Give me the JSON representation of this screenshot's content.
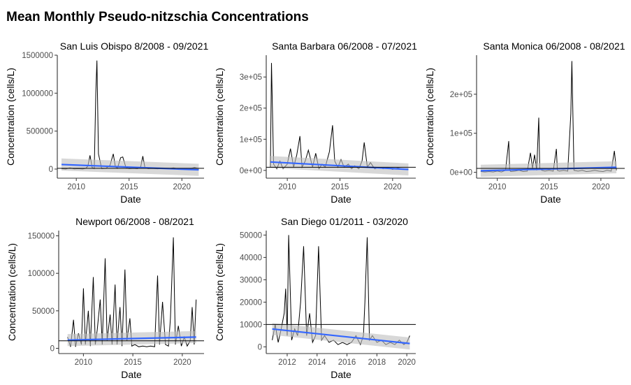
{
  "title": "Mean Monthly Pseudo-nitzschia Concentrations",
  "colors": {
    "line": "#000000",
    "trend": "#3366FF",
    "band": "#BEBEBE",
    "axis": "#333333"
  },
  "chart_data": [
    {
      "type": "line",
      "title": "San Luis Obispo 8/2008 - 09/2021",
      "xlabel": "Date",
      "ylabel": "Concentration (cells/L)",
      "xlim": [
        2008.2,
        2022.1
      ],
      "ylim": [
        -120000,
        1500000
      ],
      "xticks": [
        2010,
        2015,
        2020
      ],
      "xtick_labels": [
        "2010",
        "2015",
        "2020"
      ],
      "yticks": [
        0,
        500000,
        1000000,
        1500000
      ],
      "ytick_labels": [
        "0",
        "500000",
        "1000000",
        "1500000"
      ],
      "threshold": 10000,
      "series": [
        {
          "x": [
            2008.6,
            2009.0,
            2009.4,
            2009.8,
            2010.2,
            2010.6,
            2010.9,
            2011.1,
            2011.3,
            2011.5,
            2011.7,
            2011.85,
            2011.95,
            2012.1,
            2012.4,
            2012.8,
            2013.2,
            2013.5,
            2013.7,
            2013.9,
            2014.2,
            2014.4,
            2014.7,
            2015.0,
            2015.4,
            2015.8,
            2016.1,
            2016.3,
            2016.5,
            2016.8,
            2017.2,
            2017.7,
            2018.2,
            2018.7,
            2019.2,
            2019.7,
            2020.2,
            2020.7,
            2021.2,
            2021.6
          ],
          "y": [
            5000,
            1000,
            15000,
            2000,
            5000,
            1000,
            10000,
            40000,
            180000,
            20000,
            5000,
            1000000,
            1430000,
            200000,
            5000,
            10000,
            50000,
            200000,
            30000,
            10000,
            150000,
            160000,
            20000,
            5000,
            10000,
            5000,
            30000,
            170000,
            20000,
            5000,
            8000,
            3000,
            10000,
            4000,
            15000,
            3000,
            5000,
            2000,
            20000,
            5000
          ]
        }
      ],
      "trend": {
        "x": [
          2008.6,
          2021.6
        ],
        "y": [
          60000,
          -10000
        ]
      }
    },
    {
      "type": "line",
      "title": "Santa Barbara 06/2008 - 07/2021",
      "xlabel": "Date",
      "ylabel": "Concentration (cells/L)",
      "xlim": [
        2008.0,
        2022.2
      ],
      "ylim": [
        -25000,
        370000
      ],
      "xticks": [
        2010,
        2015,
        2020
      ],
      "xtick_labels": [
        "2010",
        "2015",
        "2020"
      ],
      "yticks": [
        0,
        100000,
        200000,
        300000
      ],
      "ytick_labels": [
        "0e+00",
        "1e+05",
        "2e+05",
        "3e+05"
      ],
      "threshold": 10000,
      "series": [
        {
          "x": [
            2008.4,
            2008.5,
            2008.7,
            2009.0,
            2009.3,
            2009.6,
            2010.0,
            2010.3,
            2010.6,
            2010.9,
            2011.2,
            2011.4,
            2011.7,
            2012.0,
            2012.4,
            2012.7,
            2013.0,
            2013.3,
            2013.6,
            2014.0,
            2014.3,
            2014.5,
            2014.8,
            2015.1,
            2015.4,
            2015.8,
            2016.1,
            2016.4,
            2016.8,
            2017.1,
            2017.3,
            2017.6,
            2017.9,
            2018.3,
            2018.7,
            2019.1,
            2019.5,
            2020.0,
            2020.5,
            2021.0,
            2021.5
          ],
          "y": [
            10000,
            345000,
            20000,
            5000,
            30000,
            5000,
            20000,
            70000,
            10000,
            50000,
            110000,
            10000,
            30000,
            65000,
            10000,
            55000,
            5000,
            20000,
            10000,
            60000,
            145000,
            30000,
            10000,
            35000,
            10000,
            20000,
            5000,
            15000,
            5000,
            30000,
            90000,
            10000,
            25000,
            5000,
            10000,
            5000,
            10000,
            3000,
            8000,
            3000,
            5000
          ]
        }
      ],
      "trend": {
        "x": [
          2008.4,
          2021.5
        ],
        "y": [
          27000,
          3000
        ]
      }
    },
    {
      "type": "line",
      "title": "Santa Monica 06/2008 - 08/2021",
      "xlabel": "Date",
      "ylabel": "Concentration (cells/L)",
      "xlim": [
        2008.0,
        2022.3
      ],
      "ylim": [
        -15000,
        300000
      ],
      "xticks": [
        2010,
        2015,
        2020
      ],
      "xtick_labels": [
        "2010",
        "2015",
        "2020"
      ],
      "yticks": [
        0,
        100000,
        200000
      ],
      "ytick_labels": [
        "0e+00",
        "1e+05",
        "2e+05"
      ],
      "threshold": 10000,
      "series": [
        {
          "x": [
            2008.4,
            2008.8,
            2009.2,
            2009.6,
            2010.0,
            2010.4,
            2010.8,
            2011.1,
            2011.2,
            2011.3,
            2011.7,
            2012.1,
            2012.5,
            2012.9,
            2013.2,
            2013.4,
            2013.6,
            2013.8,
            2014.0,
            2014.1,
            2014.3,
            2014.6,
            2015.0,
            2015.4,
            2015.7,
            2015.8,
            2016.0,
            2016.4,
            2016.8,
            2017.1,
            2017.2,
            2017.4,
            2017.8,
            2018.2,
            2018.6,
            2019.0,
            2019.4,
            2019.8,
            2020.2,
            2020.6,
            2021.0,
            2021.3,
            2021.5
          ],
          "y": [
            2000,
            1000,
            2000,
            1000,
            3000,
            1000,
            5000,
            80000,
            5000,
            2000,
            3000,
            5000,
            2000,
            3000,
            50000,
            10000,
            45000,
            5000,
            140000,
            10000,
            5000,
            3000,
            5000,
            3000,
            60000,
            5000,
            3000,
            5000,
            3000,
            150000,
            285000,
            5000,
            3000,
            5000,
            2000,
            3000,
            5000,
            3000,
            2000,
            5000,
            3000,
            55000,
            5000
          ]
        }
      ],
      "trend": {
        "x": [
          2008.4,
          2021.5
        ],
        "y": [
          4000,
          13000
        ]
      }
    },
    {
      "type": "line",
      "title": "Newport 06/2008 - 08/2021",
      "xlabel": "Date",
      "ylabel": "Concentration (cells/L)",
      "xlim": [
        2007.5,
        2022.2
      ],
      "ylim": [
        -7000,
        157000
      ],
      "xticks": [
        2010,
        2015,
        2020
      ],
      "xtick_labels": [
        "2010",
        "2015",
        "2020"
      ],
      "yticks": [
        0,
        50000,
        100000,
        150000
      ],
      "ytick_labels": [
        "0",
        "50000",
        "100000",
        "150000"
      ],
      "threshold": 10000,
      "series": [
        {
          "x": [
            2008.4,
            2008.7,
            2009.0,
            2009.2,
            2009.5,
            2009.8,
            2010.0,
            2010.2,
            2010.5,
            2010.7,
            2011.0,
            2011.2,
            2011.4,
            2011.7,
            2011.9,
            2012.2,
            2012.4,
            2012.7,
            2012.9,
            2013.2,
            2013.4,
            2013.7,
            2013.9,
            2014.2,
            2014.4,
            2014.7,
            2014.9,
            2015.2,
            2015.6,
            2016.0,
            2016.4,
            2016.8,
            2017.2,
            2017.5,
            2017.7,
            2018.0,
            2018.3,
            2018.6,
            2018.8,
            2019.1,
            2019.3,
            2019.6,
            2019.9,
            2020.2,
            2020.5,
            2020.8,
            2021.0,
            2021.2,
            2021.4
          ],
          "y": [
            15000,
            2000,
            38000,
            2000,
            20000,
            5000,
            80000,
            5000,
            50000,
            3000,
            95000,
            5000,
            25000,
            65000,
            5000,
            120000,
            10000,
            45000,
            5000,
            85000,
            5000,
            55000,
            3000,
            105000,
            10000,
            40000,
            3000,
            5000,
            2000,
            3000,
            2000,
            3000,
            2000,
            97000,
            5000,
            62000,
            5000,
            3000,
            40000,
            148000,
            5000,
            30000,
            3000,
            15000,
            3000,
            10000,
            55000,
            5000,
            65000
          ]
        }
      ],
      "trend": {
        "x": [
          2008.4,
          2021.4
        ],
        "y": [
          11000,
          15000
        ]
      }
    },
    {
      "type": "line",
      "title": "San Diego 01/2011 - 03/2020",
      "xlabel": "Date",
      "ylabel": "Concentration (cells/L)",
      "xlim": [
        2010.6,
        2020.6
      ],
      "ylim": [
        -3000,
        52000
      ],
      "xticks": [
        2012,
        2014,
        2016,
        2018,
        2020
      ],
      "xtick_labels": [
        "2012",
        "2014",
        "2016",
        "2018",
        "2020"
      ],
      "yticks": [
        0,
        10000,
        20000,
        30000,
        40000,
        50000
      ],
      "ytick_labels": [
        "0",
        "10000",
        "20000",
        "30000",
        "40000",
        "50000"
      ],
      "threshold": 10000,
      "series": [
        {
          "x": [
            2011.0,
            2011.2,
            2011.4,
            2011.6,
            2011.8,
            2011.9,
            2012.0,
            2012.1,
            2012.3,
            2012.5,
            2012.7,
            2012.9,
            2013.1,
            2013.3,
            2013.5,
            2013.7,
            2013.9,
            2014.1,
            2014.3,
            2014.5,
            2014.8,
            2015.1,
            2015.4,
            2015.7,
            2016.0,
            2016.3,
            2016.6,
            2016.9,
            2017.1,
            2017.2,
            2017.35,
            2017.5,
            2017.7,
            2018.0,
            2018.3,
            2018.6,
            2018.9,
            2019.2,
            2019.5,
            2019.8,
            2020.0,
            2020.2
          ],
          "y": [
            3000,
            10000,
            2000,
            8000,
            15000,
            26000,
            5000,
            50000,
            3000,
            8000,
            5000,
            20000,
            45000,
            5000,
            15000,
            2000,
            5000,
            45000,
            3000,
            5000,
            2000,
            3000,
            1000,
            2000,
            1000,
            2000,
            5000,
            1000,
            5000,
            20000,
            49000,
            3000,
            5000,
            2000,
            3000,
            1000,
            2000,
            1000,
            3000,
            1000,
            2000,
            5000
          ]
        }
      ],
      "trend": {
        "x": [
          2011.0,
          2020.2
        ],
        "y": [
          8000,
          1500
        ]
      }
    }
  ]
}
